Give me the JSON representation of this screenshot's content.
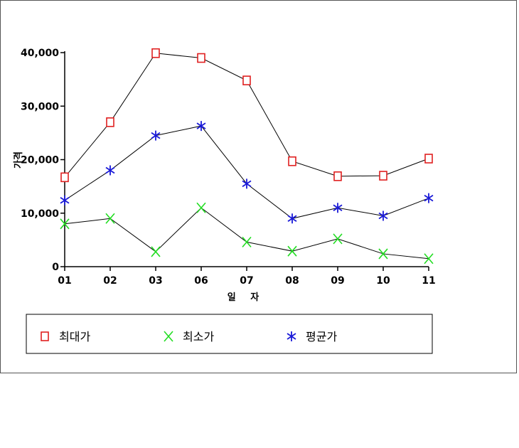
{
  "chart_data": {
    "type": "line",
    "title": "",
    "xlabel": "일 자",
    "ylabel": "가격",
    "categories": [
      "01",
      "02",
      "03",
      "06",
      "07",
      "08",
      "09",
      "10",
      "11"
    ],
    "ylim": [
      0,
      40000
    ],
    "yticks": [
      0,
      10000,
      20000,
      30000,
      40000
    ],
    "ytick_labels": [
      "0",
      "10,000",
      "20,000",
      "30,000",
      "40,000"
    ],
    "grid": false,
    "legend_position": "bottom",
    "series": [
      {
        "name": "최대가",
        "marker": "square",
        "color": "#e02020",
        "values": [
          16700,
          27000,
          39900,
          39000,
          34800,
          19700,
          16900,
          17000,
          20200
        ]
      },
      {
        "name": "최소가",
        "marker": "x",
        "color": "#22dd22",
        "values": [
          8000,
          9000,
          2800,
          11000,
          4600,
          2900,
          5200,
          2400,
          1500
        ]
      },
      {
        "name": "평균가",
        "marker": "star",
        "color": "#1a1ad8",
        "values": [
          12400,
          18000,
          24500,
          26300,
          15500,
          9000,
          11000,
          9500,
          12800
        ]
      }
    ]
  }
}
